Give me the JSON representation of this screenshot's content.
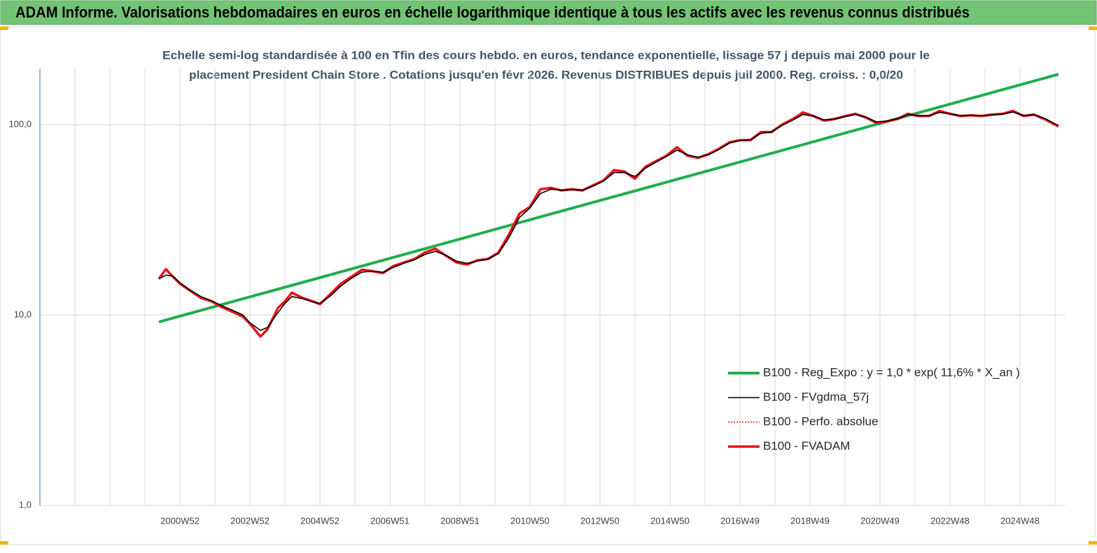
{
  "chart_data": {
    "type": "line",
    "title": "ADAM Informe. Valorisations hebdomadaires en euros en échelle logarithmique identique à tous les actifs avec les revenus connus distribués",
    "subtitle": [
      "Echelle semi-log standardisée à 100 en Tfin des cours hebdo. en euros, tendance exponentielle, lissage 57 j depuis mai 2000 pour le",
      "placement President Chain Store . Cotations jusqu'en févr 2026. Revenus DISTRIBUES depuis juil 2000. Reg. croiss. : 0,0/20"
    ],
    "log_scale": true,
    "grid": true,
    "legend": "lower right",
    "xlim": [
      1997,
      2026.3
    ],
    "xticks": [
      {
        "value": 2001,
        "label": "2000W52"
      },
      {
        "value": 2003,
        "label": "2002W52"
      },
      {
        "value": 2005,
        "label": "2004W52"
      },
      {
        "value": 2007,
        "label": "2006W51"
      },
      {
        "value": 2009,
        "label": "2008W51"
      },
      {
        "value": 2011,
        "label": "2010W50"
      },
      {
        "value": 2013,
        "label": "2012W50"
      },
      {
        "value": 2015,
        "label": "2014W50"
      },
      {
        "value": 2017,
        "label": "2016W49"
      },
      {
        "value": 2019,
        "label": "2018W49"
      },
      {
        "value": 2021,
        "label": "2020W49"
      },
      {
        "value": 2023,
        "label": "2022W48"
      },
      {
        "value": 2025,
        "label": "2024W48"
      }
    ],
    "ylim": [
      1,
      197
    ],
    "yticks": [
      {
        "value": 1,
        "label": "1,0"
      },
      {
        "value": 10,
        "label": "10,0"
      },
      {
        "value": 100,
        "label": "100,0"
      }
    ],
    "x": [
      2000.4,
      2000.6,
      2000.8,
      2001.0,
      2001.3,
      2001.6,
      2001.9,
      2002.2,
      2002.5,
      2002.8,
      2003.0,
      2003.3,
      2003.5,
      2003.8,
      2004.0,
      2004.2,
      2004.5,
      2004.8,
      2005.0,
      2005.3,
      2005.6,
      2005.9,
      2006.2,
      2006.5,
      2006.8,
      2007.1,
      2007.4,
      2007.7,
      2008.0,
      2008.3,
      2008.6,
      2008.9,
      2009.2,
      2009.5,
      2009.8,
      2010.1,
      2010.4,
      2010.7,
      2011.0,
      2011.3,
      2011.6,
      2011.9,
      2012.2,
      2012.5,
      2012.8,
      2013.1,
      2013.4,
      2013.7,
      2014.0,
      2014.3,
      2014.6,
      2014.9,
      2015.2,
      2015.5,
      2015.8,
      2016.1,
      2016.4,
      2016.7,
      2017.0,
      2017.3,
      2017.6,
      2017.9,
      2018.2,
      2018.5,
      2018.8,
      2019.1,
      2019.4,
      2019.7,
      2020.0,
      2020.3,
      2020.6,
      2020.9,
      2021.2,
      2021.5,
      2021.8,
      2022.1,
      2022.4,
      2022.7,
      2023.0,
      2023.3,
      2023.6,
      2023.9,
      2024.2,
      2024.5,
      2024.8,
      2025.1,
      2025.4,
      2025.7,
      2026.0,
      2026.1
    ],
    "series": [
      {
        "name": "B100 - Reg_Expo : y = 1,0 * exp( 11,6% *  X_an )",
        "color": "#1fae4b",
        "width": 4,
        "x": [
          2000.4,
          2026.1
        ],
        "values": [
          9.2,
          184
        ]
      },
      {
        "name": "B100 - FVgdma_57j",
        "color": "#000000",
        "width": 1.6,
        "values": [
          15.5,
          16.2,
          16.0,
          14.8,
          13.5,
          12.5,
          11.9,
          11.2,
          10.6,
          10.0,
          9.1,
          8.3,
          8.6,
          10.3,
          11.5,
          12.5,
          12.2,
          11.7,
          11.5,
          12.6,
          14.2,
          15.6,
          16.8,
          17.0,
          16.8,
          17.8,
          18.7,
          19.5,
          20.8,
          21.6,
          20.6,
          19.2,
          18.7,
          19.2,
          19.7,
          21.0,
          25.5,
          32.5,
          36.5,
          43.5,
          45.8,
          45.3,
          45.5,
          45.3,
          47.5,
          50.5,
          56.0,
          56.0,
          53.5,
          59.0,
          63.5,
          68.0,
          73.5,
          69.5,
          67.5,
          69.5,
          74.0,
          80.0,
          82.5,
          83.5,
          90.0,
          91.5,
          99,
          105.5,
          113,
          111,
          106,
          107,
          110,
          113,
          109.5,
          103.5,
          104.5,
          107.5,
          113,
          111.5,
          111.5,
          116,
          114,
          111.5,
          112,
          111.5,
          112.5,
          113.5,
          116.5,
          112,
          112.5,
          108,
          101,
          99
        ]
      },
      {
        "name": "B100 - Perfo. absolue",
        "color": "#e8121b",
        "width": 1.5,
        "dash": "dotted",
        "values": [
          15.5,
          17.4,
          15.9,
          14.6,
          13.4,
          12.3,
          11.8,
          11.0,
          10.4,
          9.8,
          9.0,
          7.7,
          8.4,
          10.9,
          11.8,
          13.1,
          12.3,
          11.8,
          11.4,
          12.9,
          14.6,
          15.9,
          17.3,
          17.0,
          16.6,
          18.1,
          18.9,
          19.7,
          21.3,
          22.3,
          20.5,
          18.9,
          18.4,
          19.4,
          19.7,
          21.3,
          26.5,
          34.1,
          37.0,
          45.8,
          46.6,
          45.1,
          45.8,
          45.1,
          48.0,
          50.9,
          57.7,
          56.7,
          52.0,
          60.1,
          64.3,
          68.7,
          76.1,
          68.7,
          66.9,
          70.0,
          74.7,
          80.8,
          82.9,
          82.9,
          91.5,
          91.5,
          100,
          106.8,
          116,
          111,
          105,
          107,
          111,
          114,
          109,
          102,
          104,
          107,
          114,
          111,
          111,
          118,
          114,
          111,
          112,
          111,
          113,
          114,
          118,
          111,
          113,
          107,
          100,
          98
        ]
      },
      {
        "name": "B100 - FVADAM",
        "color": "#e8121b",
        "width": 3.5,
        "values": [
          15.5,
          17.4,
          15.9,
          14.6,
          13.4,
          12.3,
          11.8,
          11.0,
          10.4,
          9.8,
          9.0,
          7.7,
          8.4,
          10.9,
          11.8,
          13.1,
          12.3,
          11.8,
          11.4,
          12.9,
          14.6,
          15.9,
          17.3,
          17.0,
          16.6,
          18.1,
          18.9,
          19.7,
          21.3,
          22.3,
          20.5,
          18.9,
          18.4,
          19.4,
          19.7,
          21.3,
          26.5,
          34.1,
          37.0,
          45.8,
          46.6,
          45.1,
          45.8,
          45.1,
          48.0,
          50.9,
          57.7,
          56.7,
          52.0,
          60.1,
          64.3,
          68.7,
          76.1,
          68.7,
          66.9,
          70.0,
          74.7,
          80.8,
          82.9,
          82.9,
          91.5,
          91.5,
          100,
          106.8,
          116,
          111,
          105,
          107,
          111,
          114,
          109,
          102,
          104,
          107,
          114,
          111,
          111,
          118,
          114,
          111,
          112,
          111,
          113,
          114,
          118,
          111,
          113,
          107,
          100,
          98
        ]
      }
    ]
  }
}
